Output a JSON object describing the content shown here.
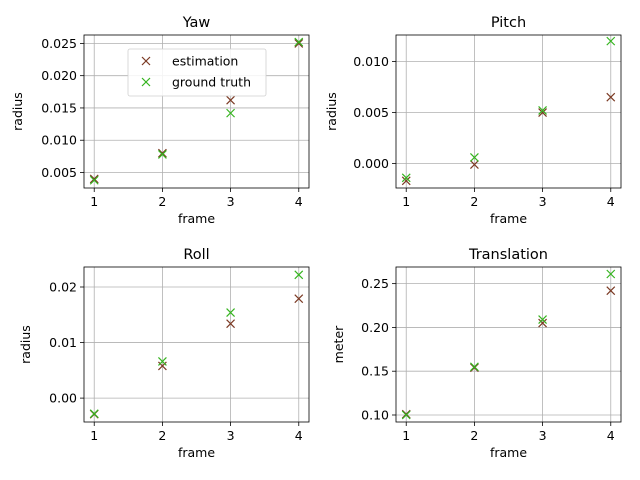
{
  "colors": {
    "estimation": "#7b3a24",
    "ground_truth": "#35b41f",
    "grid": "#b0b0b0"
  },
  "chart_data": [
    {
      "type": "scatter",
      "title": "Yaw",
      "xlabel": "frame",
      "ylabel": "radius",
      "x": [
        1,
        2,
        3,
        4
      ],
      "xlim": [
        0.85,
        4.15
      ],
      "ylim": [
        0.0026,
        0.0263
      ],
      "xticks": [
        1,
        2,
        3,
        4
      ],
      "xtick_labels": [
        "1",
        "2",
        "3",
        "4"
      ],
      "yticks": [
        0.005,
        0.01,
        0.015,
        0.02,
        0.025
      ],
      "ytick_labels": [
        "0.005",
        "0.010",
        "0.015",
        "0.020",
        "0.025"
      ],
      "grid": true,
      "legend": {
        "placement": "upper-center",
        "entries": [
          "estimation",
          "ground truth"
        ]
      },
      "series": [
        {
          "name": "estimation",
          "marker": "x",
          "values": [
            0.004,
            0.008,
            0.0162,
            0.025
          ]
        },
        {
          "name": "ground truth",
          "marker": "x",
          "values": [
            0.0038,
            0.0078,
            0.0142,
            0.0252
          ]
        }
      ]
    },
    {
      "type": "scatter",
      "title": "Pitch",
      "xlabel": "frame",
      "ylabel": "radius",
      "x": [
        1,
        2,
        3,
        4
      ],
      "xlim": [
        0.85,
        4.15
      ],
      "ylim": [
        -0.0024,
        0.0126
      ],
      "xticks": [
        1,
        2,
        3,
        4
      ],
      "xtick_labels": [
        "1",
        "2",
        "3",
        "4"
      ],
      "yticks": [
        0.0,
        0.005,
        0.01
      ],
      "ytick_labels": [
        "0.000",
        "0.005",
        "0.010"
      ],
      "grid": true,
      "series": [
        {
          "name": "estimation",
          "marker": "x",
          "values": [
            -0.0017,
            -0.0001,
            0.005,
            0.0065
          ]
        },
        {
          "name": "ground truth",
          "marker": "x",
          "values": [
            -0.0014,
            0.0006,
            0.0052,
            0.012
          ]
        }
      ]
    },
    {
      "type": "scatter",
      "title": "Roll",
      "xlabel": "frame",
      "ylabel": "radius",
      "x": [
        1,
        2,
        3,
        4
      ],
      "xlim": [
        0.85,
        4.15
      ],
      "ylim": [
        -0.0043,
        0.0236
      ],
      "xticks": [
        1,
        2,
        3,
        4
      ],
      "xtick_labels": [
        "1",
        "2",
        "3",
        "4"
      ],
      "yticks": [
        0.0,
        0.01,
        0.02
      ],
      "ytick_labels": [
        "0.00",
        "0.01",
        "0.02"
      ],
      "grid": true,
      "series": [
        {
          "name": "estimation",
          "marker": "x",
          "values": [
            -0.0029,
            0.0058,
            0.0134,
            0.0179
          ]
        },
        {
          "name": "ground truth",
          "marker": "x",
          "values": [
            -0.0028,
            0.0066,
            0.0154,
            0.0222
          ]
        }
      ]
    },
    {
      "type": "scatter",
      "title": "Translation",
      "xlabel": "frame",
      "ylabel": "meter",
      "x": [
        1,
        2,
        3,
        4
      ],
      "xlim": [
        0.85,
        4.15
      ],
      "ylim": [
        0.092,
        0.269
      ],
      "xticks": [
        1,
        2,
        3,
        4
      ],
      "xtick_labels": [
        "1",
        "2",
        "3",
        "4"
      ],
      "yticks": [
        0.1,
        0.15,
        0.2,
        0.25
      ],
      "ytick_labels": [
        "0.10",
        "0.15",
        "0.20",
        "0.25"
      ],
      "grid": true,
      "series": [
        {
          "name": "estimation",
          "marker": "x",
          "values": [
            0.101,
            0.154,
            0.205,
            0.242
          ]
        },
        {
          "name": "ground truth",
          "marker": "x",
          "values": [
            0.1,
            0.155,
            0.209,
            0.261
          ]
        }
      ]
    }
  ]
}
